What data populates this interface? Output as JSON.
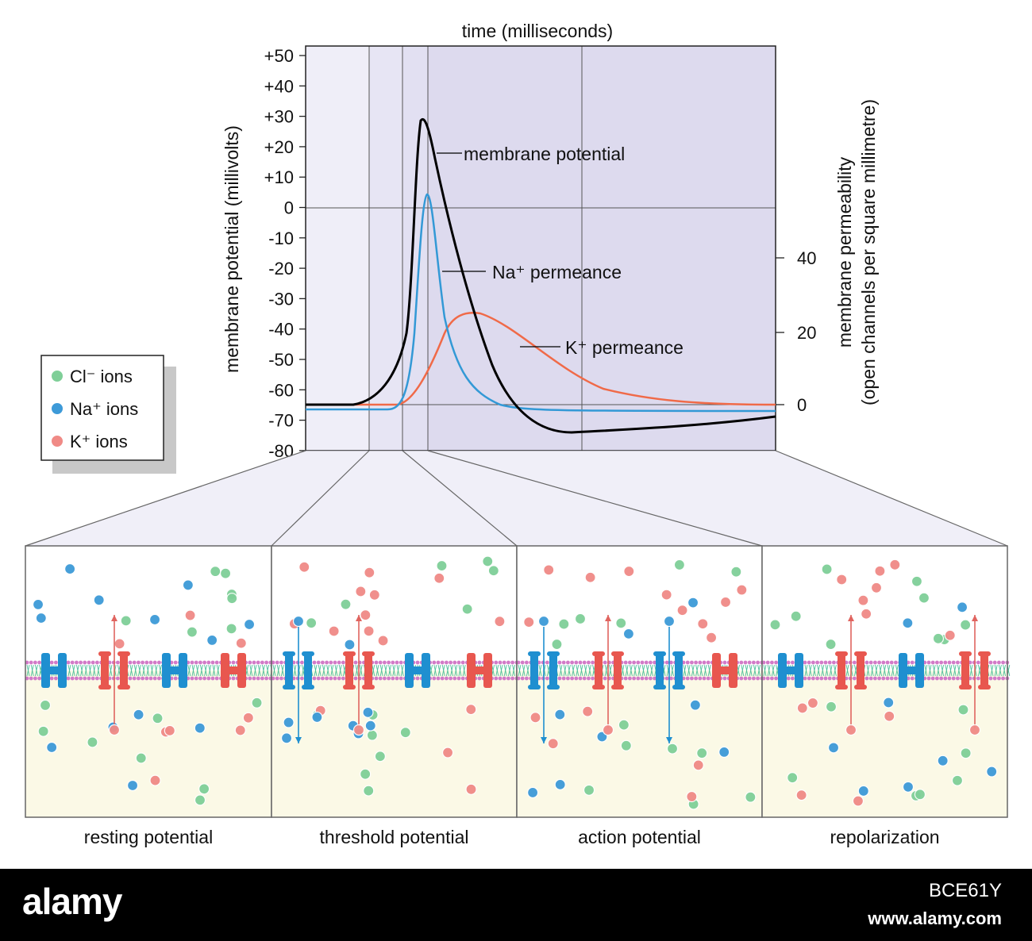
{
  "chart": {
    "x_axis_label": "time (milliseconds)",
    "y_left_label": "membrane potential (millivolts)",
    "y_right_label_line1": "membrane permeability",
    "y_right_label_line2": "(open channels per square millimetre)",
    "y_left_ticks": [
      "+50",
      "+40",
      "+30",
      "+20",
      "+10",
      "0",
      "-10",
      "-20",
      "-30",
      "-40",
      "-50",
      "-60",
      "-70",
      "-80"
    ],
    "y_right_ticks": [
      "40",
      "20",
      "0"
    ],
    "curve_labels": {
      "membrane": "membrane potential",
      "na": "Na⁺ permeance",
      "k": "K⁺ permeance"
    }
  },
  "chart_data": {
    "type": "line",
    "xlabel": "time (milliseconds)",
    "ylabel": "membrane potential (millivolts)",
    "ylim": [
      -80,
      50
    ],
    "y2label": "membrane permeability (open channels per square millimetre)",
    "series": [
      {
        "name": "membrane potential",
        "color": "#000000"
      },
      {
        "name": "Na⁺ permeance",
        "color": "#3399d6"
      },
      {
        "name": "K⁺ permeance",
        "color": "#f06a48"
      }
    ]
  },
  "legend": {
    "items": [
      {
        "label": "Cl⁻ ions",
        "color": "#7fcf98"
      },
      {
        "label": "Na⁺ ions",
        "color": "#3d9ad8"
      },
      {
        "label": "K⁺ ions",
        "color": "#f08a86"
      }
    ]
  },
  "panels": [
    {
      "label": "resting potential"
    },
    {
      "label": "threshold potential"
    },
    {
      "label": "action potential"
    },
    {
      "label": "repolarization"
    }
  ],
  "watermark": {
    "brand": "alamy",
    "image_code": "BCE61Y",
    "url": "www.alamy.com"
  },
  "colors": {
    "chart_bg": "#dedcf0",
    "chart_bg_light": "#eceaf6",
    "inside_cell": "#fbf9e6",
    "na_channel": "#1f8fd0",
    "k_channel": "#e8574f"
  }
}
